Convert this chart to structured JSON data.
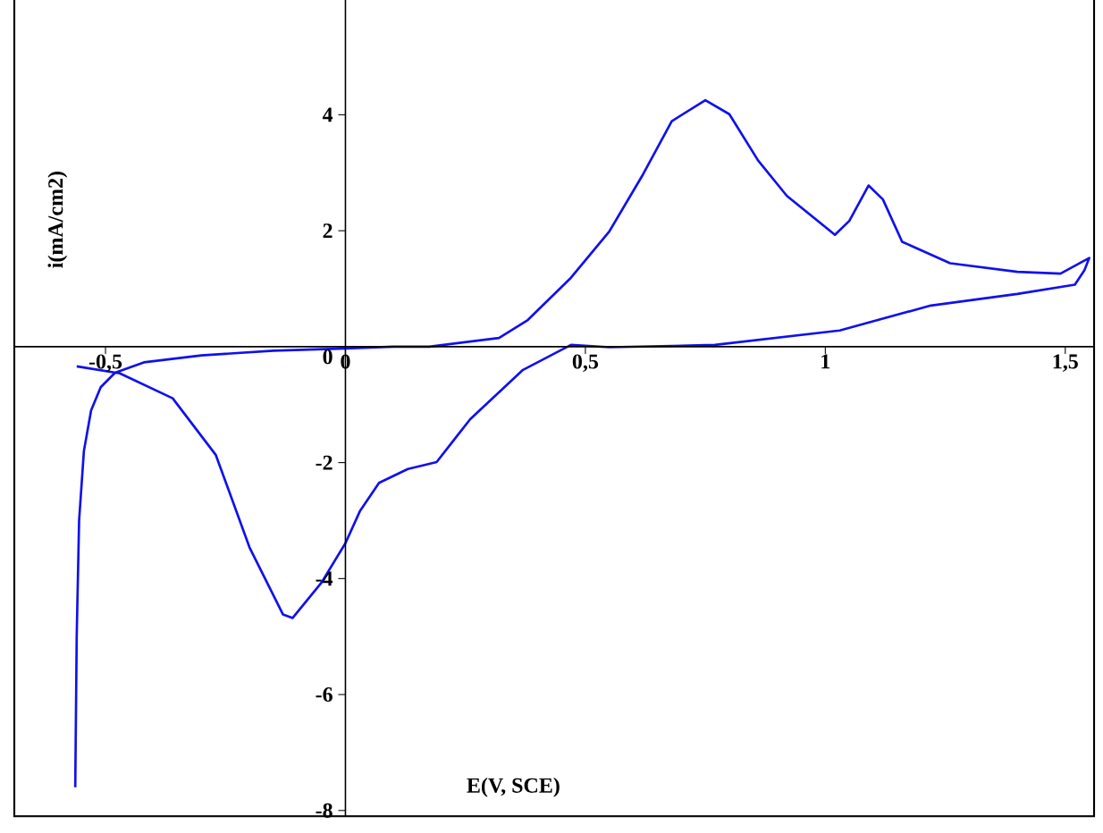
{
  "chart_data": {
    "type": "line",
    "xlabel": "E(V, SCE)",
    "ylabel": "i(mA/cm2)",
    "xlim": [
      -0.69,
      1.56
    ],
    "ylim": [
      -8.1,
      6
    ],
    "xticks": [
      {
        "value": -0.5,
        "label": "-0,5"
      },
      0,
      {
        "value": 0.5,
        "label": "0,5"
      },
      1,
      {
        "value": 1.5,
        "label": "1,5"
      }
    ],
    "yticks": [
      -8,
      -6,
      -4,
      -2,
      0,
      2,
      4
    ],
    "marker": "none",
    "line_style": "solid",
    "series": [
      {
        "color": "#1010ee",
        "x": [
          -0.563,
          -0.56,
          -0.555,
          -0.545,
          -0.53,
          -0.51,
          -0.48,
          -0.42,
          -0.3,
          -0.15,
          0,
          0.1,
          0.175,
          0.32,
          0.38,
          0.47,
          0.55,
          0.62,
          0.68,
          0.75,
          0.8,
          0.86,
          0.92,
          1.02,
          1.05,
          1.09,
          1.12,
          1.16,
          1.26,
          1.4,
          1.49,
          1.55,
          1.54,
          1.52,
          1.4,
          1.22,
          1.03,
          0.77,
          0.55,
          0.47,
          0.37,
          0.26,
          0.19,
          0.13,
          0.07,
          0.03,
          0,
          -0.05,
          -0.11,
          -0.13,
          -0.2,
          -0.27,
          -0.36,
          -0.47,
          -0.56
        ],
        "values": [
          -7.6,
          -5,
          -3,
          -1.8,
          -1.1,
          -0.7,
          -0.45,
          -0.27,
          -0.15,
          -0.07,
          -0.03,
          0,
          0.0,
          0.15,
          0.46,
          1.19,
          1.99,
          2.97,
          3.89,
          4.25,
          4.01,
          3.21,
          2.6,
          1.93,
          2.17,
          2.78,
          2.54,
          1.81,
          1.44,
          1.29,
          1.26,
          1.53,
          1.32,
          1.07,
          0.91,
          0.71,
          0.28,
          0.03,
          -0.01,
          0.03,
          -0.4,
          -1.25,
          -1.99,
          -2.11,
          -2.35,
          -2.84,
          -3.39,
          -4.07,
          -4.68,
          -4.62,
          -3.46,
          -1.87,
          -0.89,
          -0.46,
          -0.34
        ]
      }
    ]
  }
}
